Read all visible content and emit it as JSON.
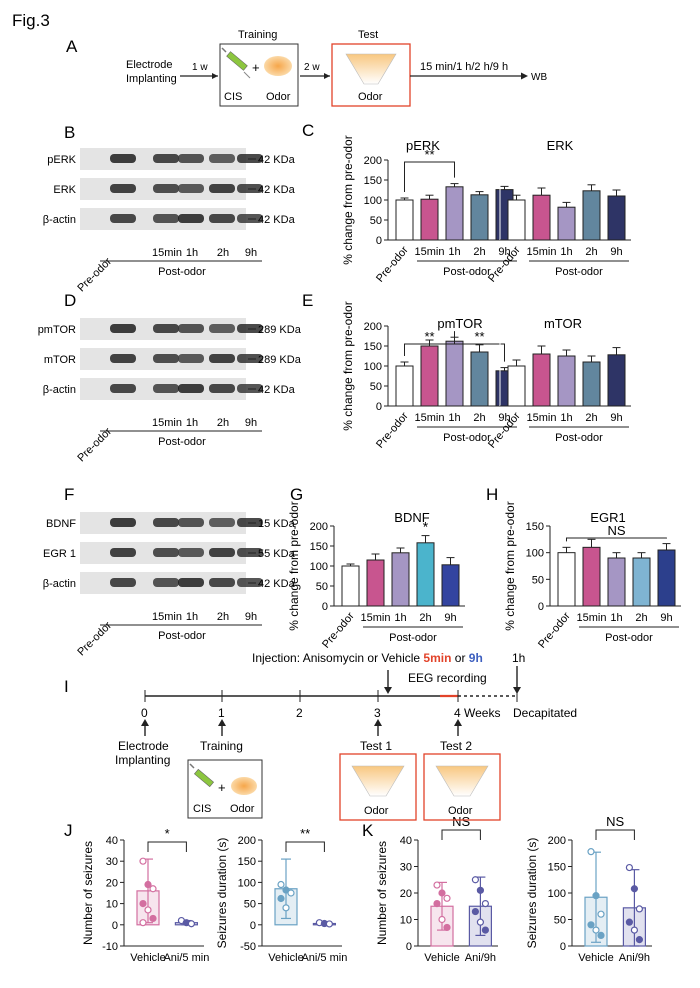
{
  "figure_title": "Fig.3",
  "panels": {
    "A": "A",
    "B": "B",
    "C": "C",
    "D": "D",
    "E": "E",
    "F": "F",
    "G": "G",
    "H": "H",
    "I": "I",
    "J": "J",
    "K": "K"
  },
  "colors": {
    "c0": "#ffffff",
    "c1": "#c8558f",
    "c2": "#a596c4",
    "c3": "#62869e",
    "c4": "#2e3466",
    "bdnf3": "#4bb4cc",
    "bdnf4": "#3344a0",
    "egr3": "#7fb4d2",
    "egr4": "#2c3f8c",
    "vehicle_pink": "#d36fa0",
    "vehicle_blue": "#6aa2c4",
    "ani_purple": "#5a5aa4",
    "box_red": "#e2432a",
    "highlight_5min": "#e2432a",
    "highlight_9h": "#3d5fbf"
  },
  "schematic_a": {
    "electrode_line1": "Electrode",
    "electrode_line2": "Implanting",
    "arrow1": "1 w",
    "training_title": "Training",
    "cis": "CIS",
    "plus": "+",
    "odor": "Odor",
    "arrow2": "2 w",
    "test_title": "Test",
    "test_odor": "Odor",
    "times": "15 min/1 h/2 h/9 h",
    "wb": "WB"
  },
  "blots": {
    "b_rows": [
      "pERK",
      "ERK",
      "β-actin"
    ],
    "b_kda": [
      "42 KDa",
      "42 KDa",
      "42 KDa"
    ],
    "d_rows": [
      "pmTOR",
      "mTOR",
      "β-actin"
    ],
    "d_kda": [
      "289 KDa",
      "289 KDa",
      "42 KDa"
    ],
    "f_rows": [
      "BDNF",
      "EGR 1",
      "β-actin"
    ],
    "f_kda": [
      "15 KDa",
      "55 KDa",
      "42 KDa"
    ],
    "lanes": [
      "Pre-odor",
      "15min",
      "1h",
      "2h",
      "9h"
    ],
    "post_odor": "Post-odor"
  },
  "chart_data": [
    {
      "id": "C-pERK",
      "type": "bar",
      "title": "pERK",
      "ylabel": "% change from pre-odor",
      "ylim": [
        0,
        200
      ],
      "yticks": [
        0,
        50,
        100,
        150,
        200
      ],
      "categories": [
        "Pre-odor",
        "15min",
        "1h",
        "2h",
        "9h"
      ],
      "values": [
        100,
        102,
        133,
        113,
        126
      ],
      "errors": [
        5,
        10,
        8,
        8,
        8
      ],
      "group_label": "Post-odor",
      "annotations": [
        {
          "from": "Pre-odor",
          "to": "1h",
          "text": "**"
        }
      ]
    },
    {
      "id": "C-ERK",
      "type": "bar",
      "title": "ERK",
      "ylim": [
        0,
        200
      ],
      "categories": [
        "Pre-odor",
        "15min",
        "1h",
        "2h",
        "9h"
      ],
      "values": [
        100,
        112,
        82,
        123,
        110
      ],
      "errors": [
        12,
        18,
        12,
        15,
        15
      ],
      "group_label": "Post-odor"
    },
    {
      "id": "E-pmTOR",
      "type": "bar",
      "title": "pmTOR",
      "ylabel": "% change from pre-odor",
      "ylim": [
        0,
        200
      ],
      "yticks": [
        0,
        50,
        100,
        150,
        200
      ],
      "categories": [
        "Pre-odor",
        "15min",
        "1h",
        "2h",
        "9h"
      ],
      "values": [
        100,
        150,
        162,
        135,
        88
      ],
      "errors": [
        10,
        15,
        10,
        18,
        8
      ],
      "group_label": "Post-odor",
      "annotations": [
        {
          "from": "Pre-odor",
          "to": "1h",
          "text": "**"
        },
        {
          "from": "1h",
          "to": "9h",
          "text": "**"
        }
      ]
    },
    {
      "id": "E-mTOR",
      "type": "bar",
      "title": "mTOR",
      "ylim": [
        0,
        200
      ],
      "categories": [
        "Pre-odor",
        "15min",
        "1h",
        "2h",
        "9h"
      ],
      "values": [
        100,
        130,
        125,
        110,
        128
      ],
      "errors": [
        15,
        20,
        15,
        15,
        18
      ],
      "group_label": "Post-odor"
    },
    {
      "id": "G-BDNF",
      "type": "bar",
      "title": "BDNF",
      "ylabel": "% change from pre-odor",
      "ylim": [
        0,
        200
      ],
      "yticks": [
        0,
        50,
        100,
        150,
        200
      ],
      "categories": [
        "Pre-odor",
        "15min",
        "1h",
        "2h",
        "9h"
      ],
      "values": [
        100,
        115,
        133,
        158,
        103
      ],
      "errors": [
        5,
        15,
        12,
        18,
        18
      ],
      "group_label": "Post-odor",
      "annotations": [
        {
          "at": "2h",
          "text": "*"
        }
      ]
    },
    {
      "id": "H-EGR1",
      "type": "bar",
      "title": "EGR1",
      "ylabel": "% change from pre-odor",
      "ylim": [
        0,
        150
      ],
      "yticks": [
        0,
        50,
        100,
        150
      ],
      "categories": [
        "Pre-odor",
        "15min",
        "1h",
        "2h",
        "9h"
      ],
      "values": [
        100,
        110,
        90,
        90,
        105
      ],
      "errors": [
        10,
        15,
        10,
        10,
        12
      ],
      "group_label": "Post-odor",
      "annotations": [
        {
          "from": "Pre-odor",
          "to": "9h",
          "text": "NS"
        }
      ]
    },
    {
      "id": "J-number",
      "type": "scatter-bar",
      "ylabel": "Number of seizures",
      "ylim": [
        -10,
        40
      ],
      "yticks": [
        -10,
        0,
        10,
        20,
        30,
        40
      ],
      "categories": [
        "Vehicle",
        "Ani/5 min"
      ],
      "values": [
        16,
        1
      ],
      "errors": [
        15,
        1
      ],
      "points": [
        [
          30,
          19,
          17,
          10,
          7,
          3,
          1
        ],
        [
          2,
          1,
          0.5
        ]
      ],
      "annotations": [
        {
          "from": "Vehicle",
          "to": "Ani/5 min",
          "text": "*"
        }
      ]
    },
    {
      "id": "J-duration",
      "type": "scatter-bar",
      "ylabel": "Seizures duration (s)",
      "ylim": [
        -50,
        200
      ],
      "yticks": [
        -50,
        0,
        50,
        100,
        150,
        200
      ],
      "categories": [
        "Vehicle",
        "Ani/5 min"
      ],
      "values": [
        85,
        3
      ],
      "errors": [
        70,
        3
      ],
      "points": [
        [
          95,
          82,
          75,
          62,
          40
        ],
        [
          5,
          3,
          2
        ]
      ],
      "annotations": [
        {
          "from": "Vehicle",
          "to": "Ani/5 min",
          "text": "**"
        }
      ]
    },
    {
      "id": "K-number",
      "type": "scatter-bar",
      "ylabel": "Number of seizures",
      "ylim": [
        0,
        40
      ],
      "yticks": [
        0,
        10,
        20,
        30,
        40
      ],
      "categories": [
        "Vehicle",
        "Ani/9h"
      ],
      "values": [
        15,
        15
      ],
      "errors": [
        9,
        11
      ],
      "points": [
        [
          23,
          20,
          18,
          16,
          10,
          7
        ],
        [
          25,
          21,
          16,
          13,
          9,
          6
        ]
      ],
      "annotations": [
        {
          "from": "Vehicle",
          "to": "Ani/9h",
          "text": "NS"
        }
      ]
    },
    {
      "id": "K-duration",
      "type": "scatter-bar",
      "ylabel": "Seizures duration (s)",
      "ylim": [
        0,
        200
      ],
      "yticks": [
        0,
        50,
        100,
        150,
        200
      ],
      "categories": [
        "Vehicle",
        "Ani/9h"
      ],
      "values": [
        92,
        72
      ],
      "errors": [
        85,
        72
      ],
      "points": [
        [
          178,
          95,
          60,
          40,
          30,
          20
        ],
        [
          148,
          108,
          70,
          45,
          30,
          12
        ]
      ],
      "annotations": [
        {
          "from": "Vehicle",
          "to": "Ani/9h",
          "text": "NS"
        }
      ]
    }
  ],
  "timeline": {
    "injection_prefix": "Injection: Anisomycin or Vehicle ",
    "injection_5min": "5min",
    "injection_or": " or ",
    "injection_9h": "9h",
    "eeg": "EEG recording",
    "one_h": "1h",
    "ticks": [
      "0",
      "1",
      "2",
      "3",
      "4 Weeks"
    ],
    "decapitated": "Decapitated",
    "electrode_line1": "Electrode",
    "electrode_line2": "Implanting",
    "training": "Training",
    "test1": "Test 1",
    "test2": "Test 2",
    "cis": "CIS",
    "plus": "+",
    "odor": "Odor"
  }
}
